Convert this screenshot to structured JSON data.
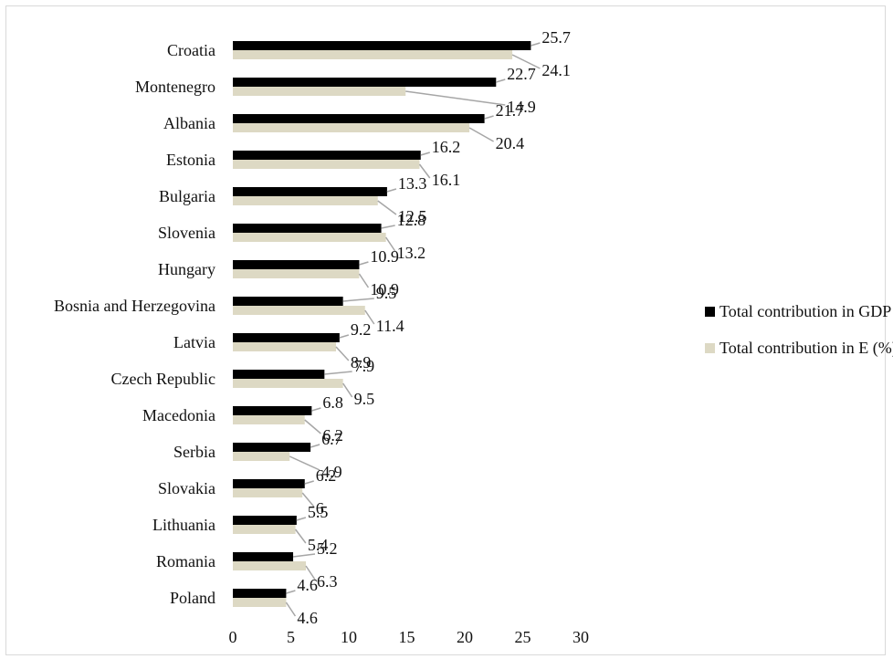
{
  "chart_data": {
    "type": "bar",
    "orientation": "horizontal",
    "categories": [
      "Croatia",
      "Montenegro",
      "Albania",
      "Estonia",
      "Bulgaria",
      "Slovenia",
      "Hungary",
      "Bosnia and Herzegovina",
      "Latvia",
      "Czech Republic",
      "Macedonia",
      "Serbia",
      "Slovakia",
      "Lithuania",
      "Romania",
      "Poland"
    ],
    "series": [
      {
        "name": "Total contribution in GDP (%)",
        "color": "#000000",
        "values": [
          25.7,
          22.7,
          21.7,
          16.2,
          13.3,
          12.8,
          10.9,
          9.5,
          9.2,
          7.9,
          6.8,
          6.7,
          6.2,
          5.5,
          5.2,
          4.6
        ],
        "labels": [
          "25.7",
          "22.7",
          "21.7",
          "16.2",
          "13.3",
          "12.8",
          "10.9",
          "9.5",
          "9.2",
          "7.9",
          "6.8",
          "6.7",
          "6.2",
          "5.5",
          "5.2",
          "4.6"
        ]
      },
      {
        "name": "Total contribution in E (%)",
        "color": "#ddd9c4",
        "values": [
          24.1,
          14.9,
          20.4,
          16.1,
          12.5,
          13.2,
          10.9,
          11.4,
          8.9,
          9.5,
          6.2,
          4.9,
          6,
          5.4,
          6.3,
          4.6
        ],
        "labels": [
          "24.1",
          "14.9",
          "20.4",
          "16.1",
          "12.5",
          "13.2",
          "10.9",
          "11.4",
          "8.9",
          "9.5",
          "6.2",
          "4.9",
          "6",
          "5.4",
          "6.3",
          "4.6"
        ]
      }
    ],
    "xlim": [
      0,
      30
    ],
    "xticks": [
      "0",
      "5",
      "10",
      "15",
      "20",
      "25",
      "30"
    ],
    "grid": false,
    "legend_position": "right",
    "leader_line_color": "#a6a6a6"
  }
}
